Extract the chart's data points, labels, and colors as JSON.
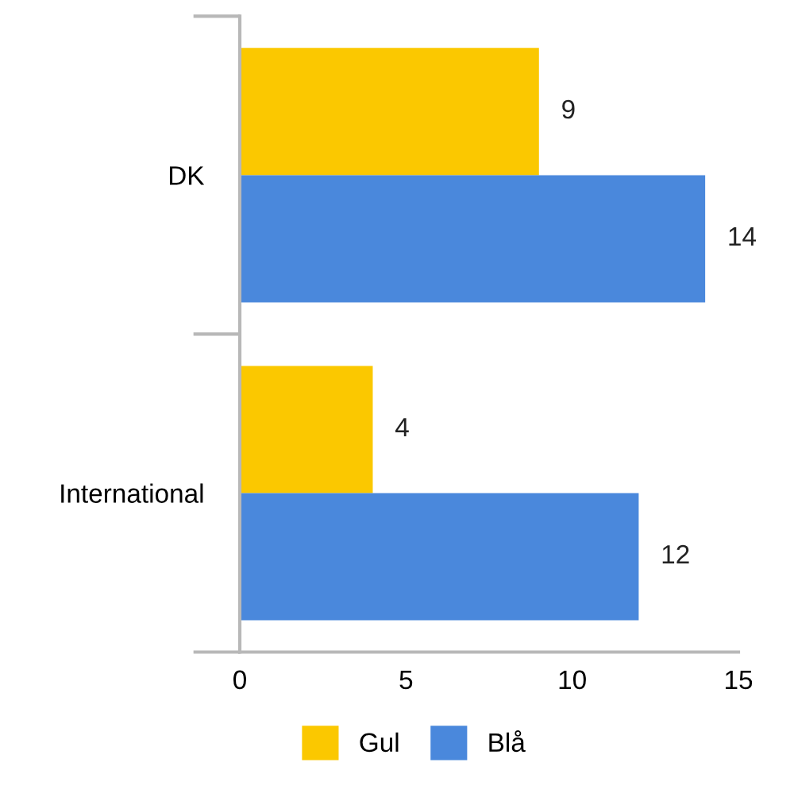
{
  "chart_data": {
    "type": "bar",
    "orientation": "horizontal",
    "categories": [
      "DK",
      "International"
    ],
    "series": [
      {
        "name": "Gul",
        "color": "#fbc800",
        "values": [
          9,
          4
        ]
      },
      {
        "name": "Blå",
        "color": "#4a88dc",
        "values": [
          14,
          12
        ]
      }
    ],
    "xlim": [
      0,
      15
    ],
    "xticks": [
      0,
      5,
      10,
      15
    ],
    "data_labels": true,
    "legend": "bottom",
    "grid": false
  }
}
